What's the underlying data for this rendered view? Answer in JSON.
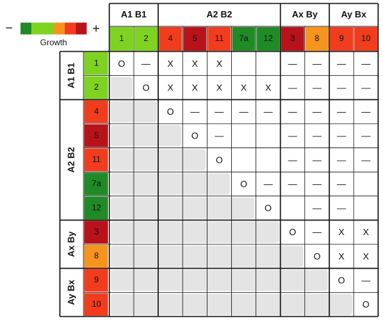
{
  "legend": {
    "minus": "−",
    "plus": "+",
    "label": "Growth"
  },
  "groups": [
    {
      "label": "A1 B1",
      "members": [
        {
          "label": "1",
          "color": "#7ed321"
        },
        {
          "label": "2",
          "color": "#7ed321"
        }
      ]
    },
    {
      "label": "A2 B2",
      "members": [
        {
          "label": "4",
          "color": "#f23c1e"
        },
        {
          "label": "5",
          "color": "#b8121b"
        },
        {
          "label": "11",
          "color": "#f23c1e"
        },
        {
          "label": "7a",
          "color": "#1f8a26"
        },
        {
          "label": "12",
          "color": "#1f8a26"
        }
      ]
    },
    {
      "label": "Ax By",
      "members": [
        {
          "label": "3",
          "color": "#b8121b"
        },
        {
          "label": "8",
          "color": "#f7941d"
        }
      ]
    },
    {
      "label": "Ay Bx",
      "members": [
        {
          "label": "9",
          "color": "#f23c1e"
        },
        {
          "label": "10",
          "color": "#f23c1e"
        }
      ]
    }
  ],
  "rows": [
    [
      "O",
      "—",
      "X",
      "X",
      "X",
      null,
      null,
      "—",
      "—",
      "—",
      "—"
    ],
    [
      null,
      "O",
      "X",
      "X",
      "X",
      "X",
      "X",
      "—",
      "—",
      "—",
      "—"
    ],
    [
      null,
      null,
      "O",
      "—",
      "—",
      "—",
      "—",
      "—",
      "—",
      "—",
      "—"
    ],
    [
      null,
      null,
      null,
      "O",
      "—",
      null,
      null,
      "—",
      "—",
      "—",
      "—"
    ],
    [
      null,
      null,
      null,
      null,
      "O",
      null,
      null,
      "—",
      "—",
      "—",
      "—"
    ],
    [
      null,
      null,
      null,
      null,
      null,
      "O",
      "—",
      "—",
      "—",
      "—",
      null
    ],
    [
      null,
      null,
      null,
      null,
      null,
      null,
      "O",
      null,
      "—",
      "—",
      null
    ],
    [
      null,
      null,
      null,
      null,
      null,
      null,
      null,
      "O",
      "—",
      "X",
      "X"
    ],
    [
      null,
      null,
      null,
      null,
      null,
      null,
      null,
      null,
      "O",
      "X",
      "X"
    ],
    [
      null,
      null,
      null,
      null,
      null,
      null,
      null,
      null,
      null,
      "O",
      "—"
    ],
    [
      null,
      null,
      null,
      null,
      null,
      null,
      null,
      null,
      null,
      null,
      "O"
    ]
  ]
}
